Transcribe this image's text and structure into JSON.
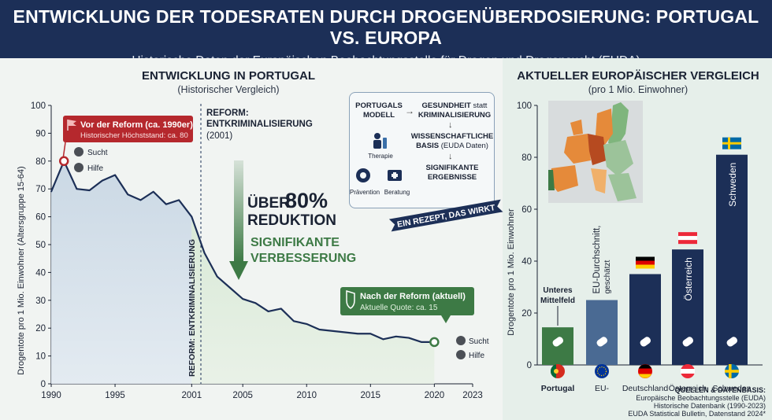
{
  "header": {
    "title": "ENTWICKLUNG DER TODESRATEN DURCH DROGENÜBERDOSIERUNG: PORTUGAL VS. EUROPA",
    "subtitle": "Historische Daten der Europäischen Beobachtungsstelle für Drogen und Drogensucht (EUDA)"
  },
  "left": {
    "title": "ENTWICKLUNG IN PORTUGAL",
    "subtitle": "(Historischer Vergleich)",
    "reform_label_1": "REFORM:",
    "reform_label_2": "ENTKRIMINALISIERUNG",
    "reform_label_3": "(2001)",
    "reform_vertical": "REFORM: ENTKRIMINALISIERUNG",
    "before_title": "Vor der Reform (ca. 1990er)",
    "before_sub": "Historischer Höchststand: ca. 80",
    "after_title": "Nach der Reform (aktuell)",
    "after_sub": "Aktuelle Quote: ca. 15",
    "sucht": "Sucht",
    "hilfe": "Hilfe",
    "big1a": "ÜBER",
    "big1b": "80%",
    "big2": "REDUKTION",
    "big3": "SIGNIFIKANTE",
    "big4": "VERBESSERUNG"
  },
  "model": {
    "title1": "PORTUGALS",
    "title2": "MODELL",
    "health1": "GESUNDHEIT",
    "health_statt": "statt",
    "health2": "KRIMINALISIERUNG",
    "sci1": "WISSENSCHAFTLICHE",
    "sci2": "BASIS",
    "sci_sub": "(EUDA Daten)",
    "res1": "SIGNIFIKANTE",
    "res2": "ERGEBNISSE",
    "therapie": "Therapie",
    "praevention": "Prävention",
    "beratung": "Beratung",
    "ribbon": "EIN REZEPT, DAS WIRKT"
  },
  "right": {
    "title": "AKTUELLER EUROPÄISCHER VERGLEICH",
    "subtitle": "(pro 1 Mio. Einwohner)",
    "portugal_note1": "Unteres",
    "portugal_note2": "Mittelfeld"
  },
  "sources": {
    "title": "QUELLEN & DATENBASIS:",
    "line1": "Europäische Beobachtungsstelle (EUDA)",
    "line2": "Historische Datenbank (1990-2023)",
    "line3": "EUDA Statistical Bulletin, Datenstand 2024*"
  },
  "colors": {
    "navy": "#1c2f57",
    "red": "#b5282d",
    "green": "#3d7a45",
    "eu_bar": "#4a6a93"
  },
  "chart_data": [
    {
      "type": "area",
      "title": "ENTWICKLUNG IN PORTUGAL",
      "xlabel": "",
      "ylabel": "Drogentote pro 1 Mio. Einwohner (Altersgruppe 15-64)",
      "xlim": [
        1990,
        2023
      ],
      "ylim": [
        0,
        100
      ],
      "x_ticks": [
        1990,
        1995,
        2001,
        2005,
        2010,
        2015,
        2020,
        2023
      ],
      "y_ticks": [
        0,
        10,
        20,
        30,
        40,
        50,
        60,
        70,
        80,
        90,
        100
      ],
      "grid": false,
      "series": [
        {
          "x": [
            1990,
            1991,
            1992,
            1993,
            1994,
            1995,
            1996,
            1997,
            1998,
            1999,
            2000,
            2001,
            2002,
            2003,
            2004,
            2005,
            2006,
            2007,
            2008,
            2009,
            2010,
            2011,
            2012,
            2013,
            2014,
            2015,
            2016,
            2017,
            2018,
            2019,
            2020
          ],
          "y": [
            69,
            80,
            70,
            69.5,
            73,
            75,
            68,
            66,
            69,
            64.5,
            66,
            60,
            47,
            38.5,
            34.5,
            30.5,
            29,
            26,
            27,
            22.5,
            21.5,
            19.5,
            19,
            18.5,
            18,
            18,
            16,
            17,
            16.5,
            15,
            15
          ]
        }
      ]
    },
    {
      "type": "bar",
      "title": "AKTUELLER EUROPÄISCHER VERGLEICH",
      "xlabel": "",
      "ylabel": "Drogentote pro 1 Mio. Einwohner",
      "ylim": [
        0,
        100
      ],
      "y_ticks": [
        0,
        20,
        40,
        60,
        80,
        100
      ],
      "categories": [
        "Portugal",
        "EU-",
        "Deutschland",
        "Österreich",
        "Schweden"
      ],
      "inner_labels": [
        "",
        "EU-Durchschnitt, geschätzt",
        "",
        "Österreich",
        "Schweden"
      ],
      "values": [
        14.5,
        25,
        35,
        44.5,
        81
      ],
      "bar_colors": [
        "#3d7a45",
        "#4a6a93",
        "#1c2f57",
        "#1c2f57",
        "#1c2f57"
      ],
      "flags": [
        "portugal",
        "eu",
        "germany",
        "austria",
        "sweden"
      ]
    }
  ]
}
